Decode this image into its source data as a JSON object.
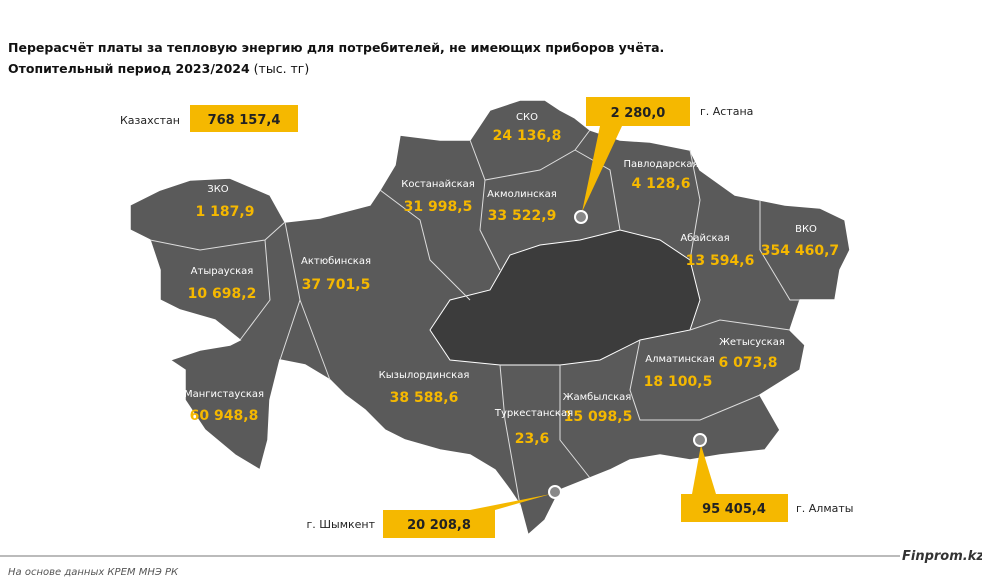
{
  "header": {
    "title": "Перерасчёт платы за тепловую энергию для потребителей, не имеющих приборов учёта.",
    "subtitle": "Отопительный период 2023/2024",
    "unit": "(тыс. тг)"
  },
  "total": {
    "label": "Казахстан",
    "value": "768 157,4"
  },
  "regions": [
    {
      "name": "ЗКО",
      "value": "1 187,9"
    },
    {
      "name": "Атырауская",
      "value": "10 698,2"
    },
    {
      "name": "Актюбинская",
      "value": "37 701,5"
    },
    {
      "name": "Мангистауская",
      "value": "60 948,8"
    },
    {
      "name": "Костанайская",
      "value": "31 998,5"
    },
    {
      "name": "СКО",
      "value": "24 136,8"
    },
    {
      "name": "Акмолинская",
      "value": "33 522,9"
    },
    {
      "name": "Павлодарская",
      "value": "4 128,6"
    },
    {
      "name": "Абайская",
      "value": "13 594,6"
    },
    {
      "name": "ВКО",
      "value": "354 460,7"
    },
    {
      "name": "Жетысуская",
      "value": "6 073,8"
    },
    {
      "name": "Алматинская",
      "value": "18 100,5"
    },
    {
      "name": "Кызылординская",
      "value": "38 588,6"
    },
    {
      "name": "Жамбылская",
      "value": "15 098,5"
    },
    {
      "name": "Туркестанская",
      "value": "23,6"
    }
  ],
  "cities": [
    {
      "name": "г. Астана",
      "value": "2 280,0"
    },
    {
      "name": "г. Шымкент",
      "value": "20 208,8"
    },
    {
      "name": "г. Алматы",
      "value": "95 405,4"
    }
  ],
  "footer": {
    "source": "На основе данных КРЕМ МНЭ РК",
    "brand": "Finprom.kz"
  }
}
